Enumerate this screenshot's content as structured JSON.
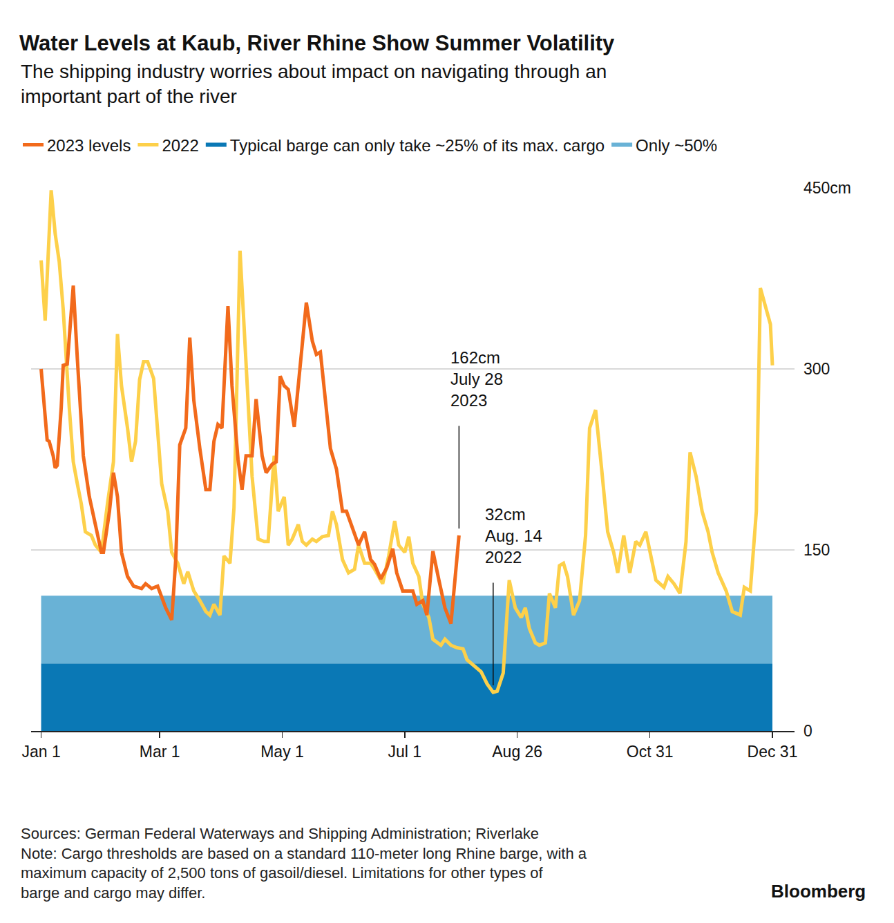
{
  "chart_data": {
    "type": "line",
    "title": "Water Levels at Kaub, River Rhine Show Summer Volatility",
    "subtitle": [
      "The shipping industry worries about impact on navigating through an",
      "important part of the river"
    ],
    "series": [
      {
        "name": "2023 levels",
        "color": "#f26a1b",
        "x": [
          0,
          3,
          4,
          6,
          7,
          8,
          10,
          11,
          13,
          16,
          18,
          21,
          24,
          27,
          30,
          31,
          34,
          36,
          38,
          40,
          43,
          46,
          50,
          52,
          55,
          58,
          62,
          65,
          67,
          69,
          72,
          74,
          76,
          79,
          82,
          84,
          86,
          88,
          90,
          93,
          95,
          98,
          100,
          102,
          105,
          107,
          110,
          112,
          115,
          117,
          119,
          121,
          123,
          126,
          128,
          130,
          132,
          135,
          137,
          139,
          142,
          144,
          147,
          150,
          152,
          155,
          158,
          161,
          164,
          166,
          169,
          172,
          175,
          177,
          180,
          182,
          185,
          187,
          190,
          192,
          195,
          198,
          201,
          204,
          208
        ],
        "values": [
          300,
          241,
          240,
          228,
          218,
          220,
          268,
          303,
          304,
          369,
          309,
          228,
          194,
          171,
          148,
          148,
          182,
          214,
          194,
          148,
          128,
          120,
          118,
          122,
          118,
          120,
          102,
          92,
          142,
          237,
          251,
          326,
          274,
          234,
          200,
          200,
          240,
          254,
          251,
          352,
          286,
          225,
          200,
          228,
          228,
          275,
          228,
          214,
          221,
          223,
          294,
          286,
          283,
          252,
          286,
          326,
          355,
          323,
          312,
          314,
          263,
          234,
          217,
          182,
          182,
          168,
          154,
          165,
          142,
          138,
          126,
          135,
          151,
          131,
          116,
          116,
          116,
          105,
          108,
          96,
          149,
          125,
          102,
          89,
          162
        ]
      },
      {
        "name": "2022",
        "color": "#fdd04a",
        "x": [
          0,
          2,
          5,
          7,
          9,
          11,
          14,
          16,
          18,
          20,
          22,
          25,
          27,
          30,
          33,
          36,
          38,
          40,
          43,
          45,
          47,
          49,
          51,
          53,
          56,
          58,
          60,
          63,
          65,
          68,
          71,
          73,
          76,
          79,
          82,
          84,
          86,
          89,
          91,
          94,
          96,
          99,
          101,
          103,
          105,
          108,
          111,
          113,
          116,
          118,
          121,
          123,
          125,
          128,
          130,
          132,
          135,
          137,
          140,
          143,
          145,
          147,
          150,
          153,
          156,
          158,
          161,
          164,
          166,
          170,
          173,
          176,
          178,
          181,
          183,
          185,
          188,
          190,
          193,
          195,
          199,
          201,
          204,
          207,
          210,
          212,
          216,
          219,
          222,
          225,
          227,
          230,
          233,
          236,
          239,
          241,
          243,
          246,
          248,
          251,
          253,
          256,
          258,
          260,
          262,
          265,
          268,
          271,
          273,
          276,
          279,
          282,
          285,
          287,
          290,
          293,
          296,
          298,
          301,
          304,
          306,
          310,
          312,
          315,
          318,
          321,
          323,
          326,
          329,
          332,
          334,
          337,
          341,
          344,
          348,
          350,
          353,
          356,
          358,
          360,
          363,
          364
        ],
        "values": [
          390,
          340,
          448,
          412,
          389,
          349,
          268,
          223,
          205,
          188,
          165,
          162,
          154,
          148,
          188,
          223,
          329,
          286,
          251,
          223,
          240,
          291,
          306,
          306,
          292,
          251,
          205,
          182,
          148,
          139,
          122,
          132,
          116,
          108,
          99,
          96,
          105,
          96,
          145,
          139,
          185,
          398,
          332,
          263,
          211,
          159,
          157,
          157,
          228,
          182,
          194,
          154,
          159,
          171,
          157,
          154,
          159,
          157,
          161,
          162,
          182,
          171,
          142,
          131,
          134,
          154,
          139,
          139,
          134,
          122,
          145,
          174,
          154,
          148,
          161,
          139,
          128,
          105,
          94,
          76,
          71,
          76,
          71,
          69,
          68,
          59,
          53,
          49,
          39,
          32,
          33,
          48,
          125,
          102,
          94,
          102,
          85,
          73,
          71,
          73,
          114,
          102,
          137,
          139,
          128,
          96,
          108,
          162,
          251,
          266,
          217,
          165,
          148,
          131,
          162,
          131,
          157,
          154,
          165,
          142,
          125,
          119,
          128,
          122,
          114,
          157,
          231,
          211,
          182,
          165,
          148,
          131,
          116,
          99,
          96,
          119,
          116,
          182,
          367,
          355,
          337,
          303
        ]
      }
    ],
    "bands": [
      {
        "name": "Typical barge can only take ~25% of its max. cargo",
        "color": "#0a78b5",
        "from": 0,
        "to": 56
      },
      {
        "name": "Only ~50%",
        "color": "#69b2d6",
        "from": 56,
        "to": 112
      }
    ],
    "xlim": [
      -5,
      375
    ],
    "xticks": [
      {
        "value": 0,
        "label": "Jan 1"
      },
      {
        "value": 59,
        "label": "Mar 1"
      },
      {
        "value": 120,
        "label": "May 1"
      },
      {
        "value": 181,
        "label": "Jul 1"
      },
      {
        "value": 237,
        "label": "Aug 26"
      },
      {
        "value": 303,
        "label": "Oct 31"
      },
      {
        "value": 364,
        "label": "Dec 31"
      }
    ],
    "ylim": [
      0,
      450
    ],
    "yticks": [
      0,
      150,
      300,
      {
        "value": 450,
        "label": "450cm"
      }
    ],
    "grid": true,
    "legend": "top",
    "annotations": [
      {
        "text": [
          "162cm",
          "July 28",
          "2023"
        ],
        "x": 208,
        "y": 162
      },
      {
        "text": [
          "32cm",
          "Aug. 14",
          "2022"
        ],
        "x": 225,
        "y": 32
      }
    ],
    "source": "Sources: German Federal Waterways and Shipping Administration; Riverlake",
    "note": [
      "Note: Cargo thresholds are based on a standard 110-meter long Rhine barge, with a",
      "maximum capacity of 2,500 tons of gasoil/diesel. Limitations for other types of",
      "barge and cargo may differ."
    ],
    "credit": "Bloomberg"
  }
}
